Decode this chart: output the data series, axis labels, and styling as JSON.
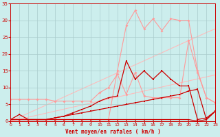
{
  "x": [
    0,
    1,
    2,
    3,
    4,
    5,
    6,
    7,
    8,
    9,
    10,
    11,
    12,
    13,
    14,
    15,
    16,
    17,
    18,
    19,
    20,
    21,
    22,
    23
  ],
  "line_pink_peaks": [
    0.5,
    0.5,
    0.5,
    0.5,
    0.5,
    0.5,
    0.5,
    0.5,
    0.5,
    0.5,
    0.5,
    0.5,
    15.0,
    28.5,
    33.0,
    27.5,
    30.5,
    27.0,
    30.5,
    30.0,
    30.0,
    15.0,
    7.0,
    5.5
  ],
  "line_mid_flat": [
    6.5,
    6.5,
    6.5,
    6.5,
    6.5,
    6.0,
    6.0,
    6.0,
    6.0,
    6.0,
    8.5,
    10.0,
    14.0,
    8.0,
    14.5,
    7.5,
    7.0,
    7.0,
    7.0,
    7.0,
    24.0,
    14.5,
    7.0,
    5.5
  ],
  "line_trend_upper": [
    0.0,
    1.2,
    2.4,
    3.6,
    4.8,
    6.0,
    7.2,
    8.4,
    9.6,
    10.8,
    12.0,
    13.2,
    14.4,
    15.6,
    16.8,
    18.0,
    19.2,
    20.4,
    21.6,
    22.8,
    24.0,
    25.2,
    26.4,
    27.5
  ],
  "line_trend_lower": [
    0.0,
    0.6,
    1.2,
    1.8,
    2.4,
    3.0,
    3.6,
    4.2,
    4.8,
    5.4,
    6.0,
    6.6,
    7.2,
    7.8,
    8.4,
    9.0,
    9.6,
    10.2,
    10.8,
    11.4,
    12.0,
    12.6,
    13.2,
    13.8
  ],
  "line_dark_jagged": [
    0.5,
    0.5,
    0.5,
    0.5,
    0.5,
    1.0,
    1.5,
    2.5,
    3.5,
    4.5,
    6.0,
    7.0,
    7.5,
    18.0,
    12.5,
    15.0,
    12.5,
    15.0,
    12.5,
    10.5,
    10.5,
    0.5,
    1.0,
    3.0
  ],
  "line_dark_low1": [
    0.5,
    2.0,
    0.5,
    0.5,
    0.5,
    1.0,
    1.5,
    2.0,
    2.5,
    3.0,
    3.5,
    4.0,
    4.5,
    5.0,
    5.5,
    6.0,
    6.5,
    7.0,
    7.5,
    8.0,
    9.0,
    9.5,
    0.5,
    3.0
  ],
  "line_dark_low2": [
    0.5,
    0.5,
    0.5,
    0.5,
    0.5,
    0.5,
    0.5,
    0.5,
    0.5,
    0.5,
    0.5,
    0.5,
    0.5,
    0.5,
    0.5,
    0.5,
    0.5,
    0.5,
    0.5,
    0.5,
    0.5,
    0.0,
    0.5,
    3.0
  ],
  "ylim": [
    0,
    35
  ],
  "xlim": [
    0,
    23
  ],
  "yticks": [
    0,
    5,
    10,
    15,
    20,
    25,
    30,
    35
  ],
  "xticks": [
    0,
    1,
    2,
    3,
    4,
    5,
    6,
    7,
    8,
    9,
    10,
    11,
    12,
    13,
    14,
    15,
    16,
    17,
    18,
    19,
    20,
    21,
    22,
    23
  ],
  "xlabel": "Vent moyen/en rafales ( km/h )",
  "bg_color": "#cceeed",
  "grid_color": "#aacccc",
  "color_dark_red": "#cc0000",
  "color_light_pink": "#ff9999",
  "color_trend": "#ffbbbb"
}
